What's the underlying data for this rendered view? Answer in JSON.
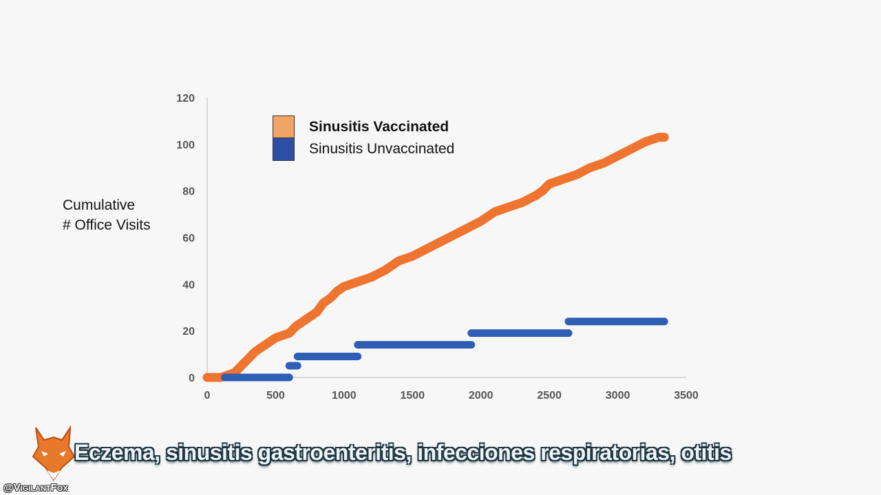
{
  "chart_data": {
    "type": "line",
    "ylabel": "Cumulative\n# Office Visits",
    "xlabel": "",
    "xlim": [
      0,
      3500
    ],
    "ylim": [
      0,
      120
    ],
    "xticks": [
      0,
      500,
      1000,
      1500,
      2000,
      2500,
      3000,
      3500
    ],
    "yticks": [
      0,
      20,
      40,
      60,
      80,
      100,
      120
    ],
    "grid": false,
    "legend_position": "top-left",
    "series": [
      {
        "name": "Sinusitis Vaccinated",
        "color": "#ee7430",
        "legend_color": "#f0a466",
        "legend_bold": true,
        "step": false,
        "x": [
          0,
          100,
          200,
          250,
          300,
          350,
          400,
          500,
          600,
          650,
          700,
          800,
          850,
          900,
          950,
          1000,
          1100,
          1200,
          1300,
          1350,
          1400,
          1500,
          1600,
          1700,
          1800,
          1900,
          2000,
          2100,
          2200,
          2300,
          2400,
          2450,
          2500,
          2600,
          2700,
          2800,
          2900,
          3000,
          3100,
          3200,
          3300,
          3340
        ],
        "y": [
          0,
          0,
          2,
          5,
          8,
          11,
          13,
          17,
          19,
          22,
          24,
          28,
          32,
          34,
          37,
          39,
          41,
          43,
          46,
          48,
          50,
          52,
          55,
          58,
          61,
          64,
          67,
          71,
          73,
          75,
          78,
          80,
          83,
          85,
          87,
          90,
          92,
          95,
          98,
          101,
          103,
          103
        ]
      },
      {
        "name": "Sinusitis Unvaccinated",
        "color": "#2f5fb4",
        "legend_color": "#2e4fa3",
        "legend_bold": false,
        "step": true,
        "x": [
          130,
          600,
          600,
          660,
          660,
          1100,
          1100,
          1930,
          1930,
          2640,
          2640,
          3340
        ],
        "y": [
          0,
          0,
          5,
          5,
          9,
          9,
          14,
          14,
          19,
          19,
          24,
          24
        ]
      }
    ]
  },
  "caption": "Eczema, sinusitis gastroenteritis, infecciones respiratorias, otitis",
  "watermark": {
    "handle": "@VigilantFox",
    "logo_icon": "fox-logo-icon"
  }
}
